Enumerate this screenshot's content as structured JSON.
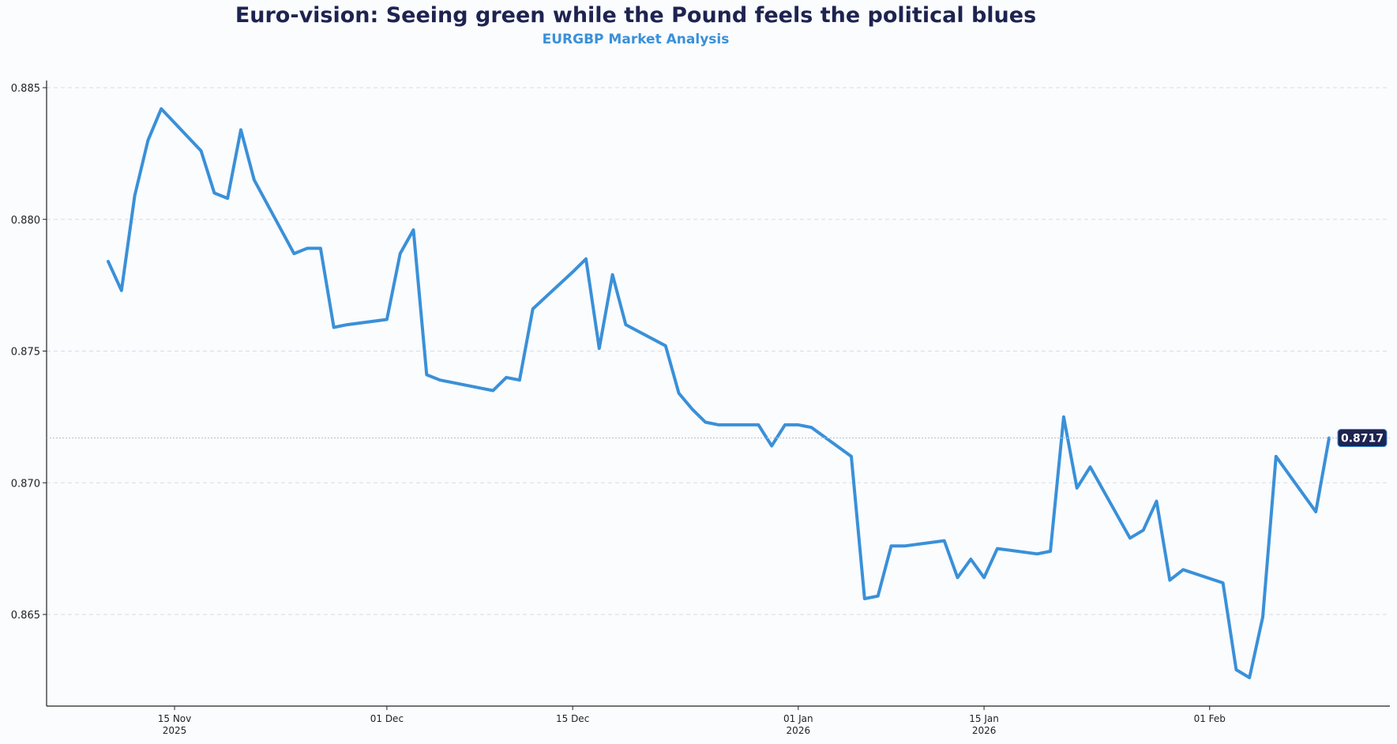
{
  "title": "Euro-vision: Seeing green while the Pound feels the political blues",
  "subtitle": "EURGBP Market Analysis",
  "colors": {
    "line": "#3a90d8",
    "title": "#1e2350",
    "subtitle": "#3a90d8",
    "badge": "#1e2350",
    "grid": "#d8dde3"
  },
  "chart_data": {
    "type": "line",
    "title": "Euro-vision: Seeing green while the Pound feels the political blues",
    "subtitle": "EURGBP Market Analysis",
    "xlabel": "",
    "ylabel": "",
    "ylim": [
      0.8615,
      0.8853
    ],
    "grid": true,
    "yticks": [
      0.865,
      0.87,
      0.875,
      0.88,
      0.885
    ],
    "ytick_labels": [
      "0.865",
      "0.870",
      "0.875",
      "0.880",
      "0.885"
    ],
    "xticks": [
      {
        "day": 5,
        "label1": "15 Nov",
        "label2": "2025"
      },
      {
        "day": 21,
        "label1": "01 Dec",
        "label2": ""
      },
      {
        "day": 35,
        "label1": "15 Dec",
        "label2": ""
      },
      {
        "day": 52,
        "label1": "01 Jan",
        "label2": "2026"
      },
      {
        "day": 66,
        "label1": "15 Jan",
        "label2": "2026"
      },
      {
        "day": 83,
        "label1": "01 Feb",
        "label2": ""
      }
    ],
    "x_origin": "2025-11-10",
    "x_unit": "days since 2025-11-10",
    "x": [
      0,
      1,
      2,
      3,
      4,
      7,
      8,
      9,
      10,
      11,
      14,
      15,
      16,
      17,
      18,
      21,
      22,
      23,
      24,
      25,
      28,
      29,
      30,
      31,
      32,
      35,
      36,
      37,
      38,
      39,
      42,
      43,
      44,
      45,
      46,
      49,
      50,
      51,
      52,
      53,
      56,
      57,
      58,
      59,
      60,
      63,
      64,
      65,
      66,
      67,
      70,
      71,
      72,
      73,
      74,
      77,
      78,
      79,
      80,
      81,
      84,
      85,
      86,
      87,
      88,
      91,
      92
    ],
    "series": [
      {
        "name": "EURGBP",
        "values": [
          0.8784,
          0.8773,
          0.8809,
          0.883,
          0.8842,
          0.8826,
          0.881,
          0.8808,
          0.8834,
          0.8815,
          0.8787,
          0.8789,
          0.8789,
          0.8759,
          0.876,
          0.8762,
          0.8787,
          0.8796,
          0.8741,
          0.8739,
          0.8736,
          0.8735,
          0.874,
          0.8739,
          0.8766,
          0.878,
          0.8785,
          0.8751,
          0.8779,
          0.876,
          0.8752,
          0.8734,
          0.8728,
          0.8723,
          0.8722,
          0.8722,
          0.8714,
          0.8722,
          0.8722,
          0.8721,
          0.871,
          0.8656,
          0.8657,
          0.8676,
          0.8676,
          0.8678,
          0.8664,
          0.8671,
          0.8664,
          0.8675,
          0.8673,
          0.8674,
          0.8725,
          0.8698,
          0.8706,
          0.8679,
          0.8682,
          0.8693,
          0.8663,
          0.8667,
          0.8662,
          0.8629,
          0.8626,
          0.8649,
          0.871,
          0.8689,
          0.8717
        ]
      }
    ],
    "last_value_label": "0.8717"
  }
}
